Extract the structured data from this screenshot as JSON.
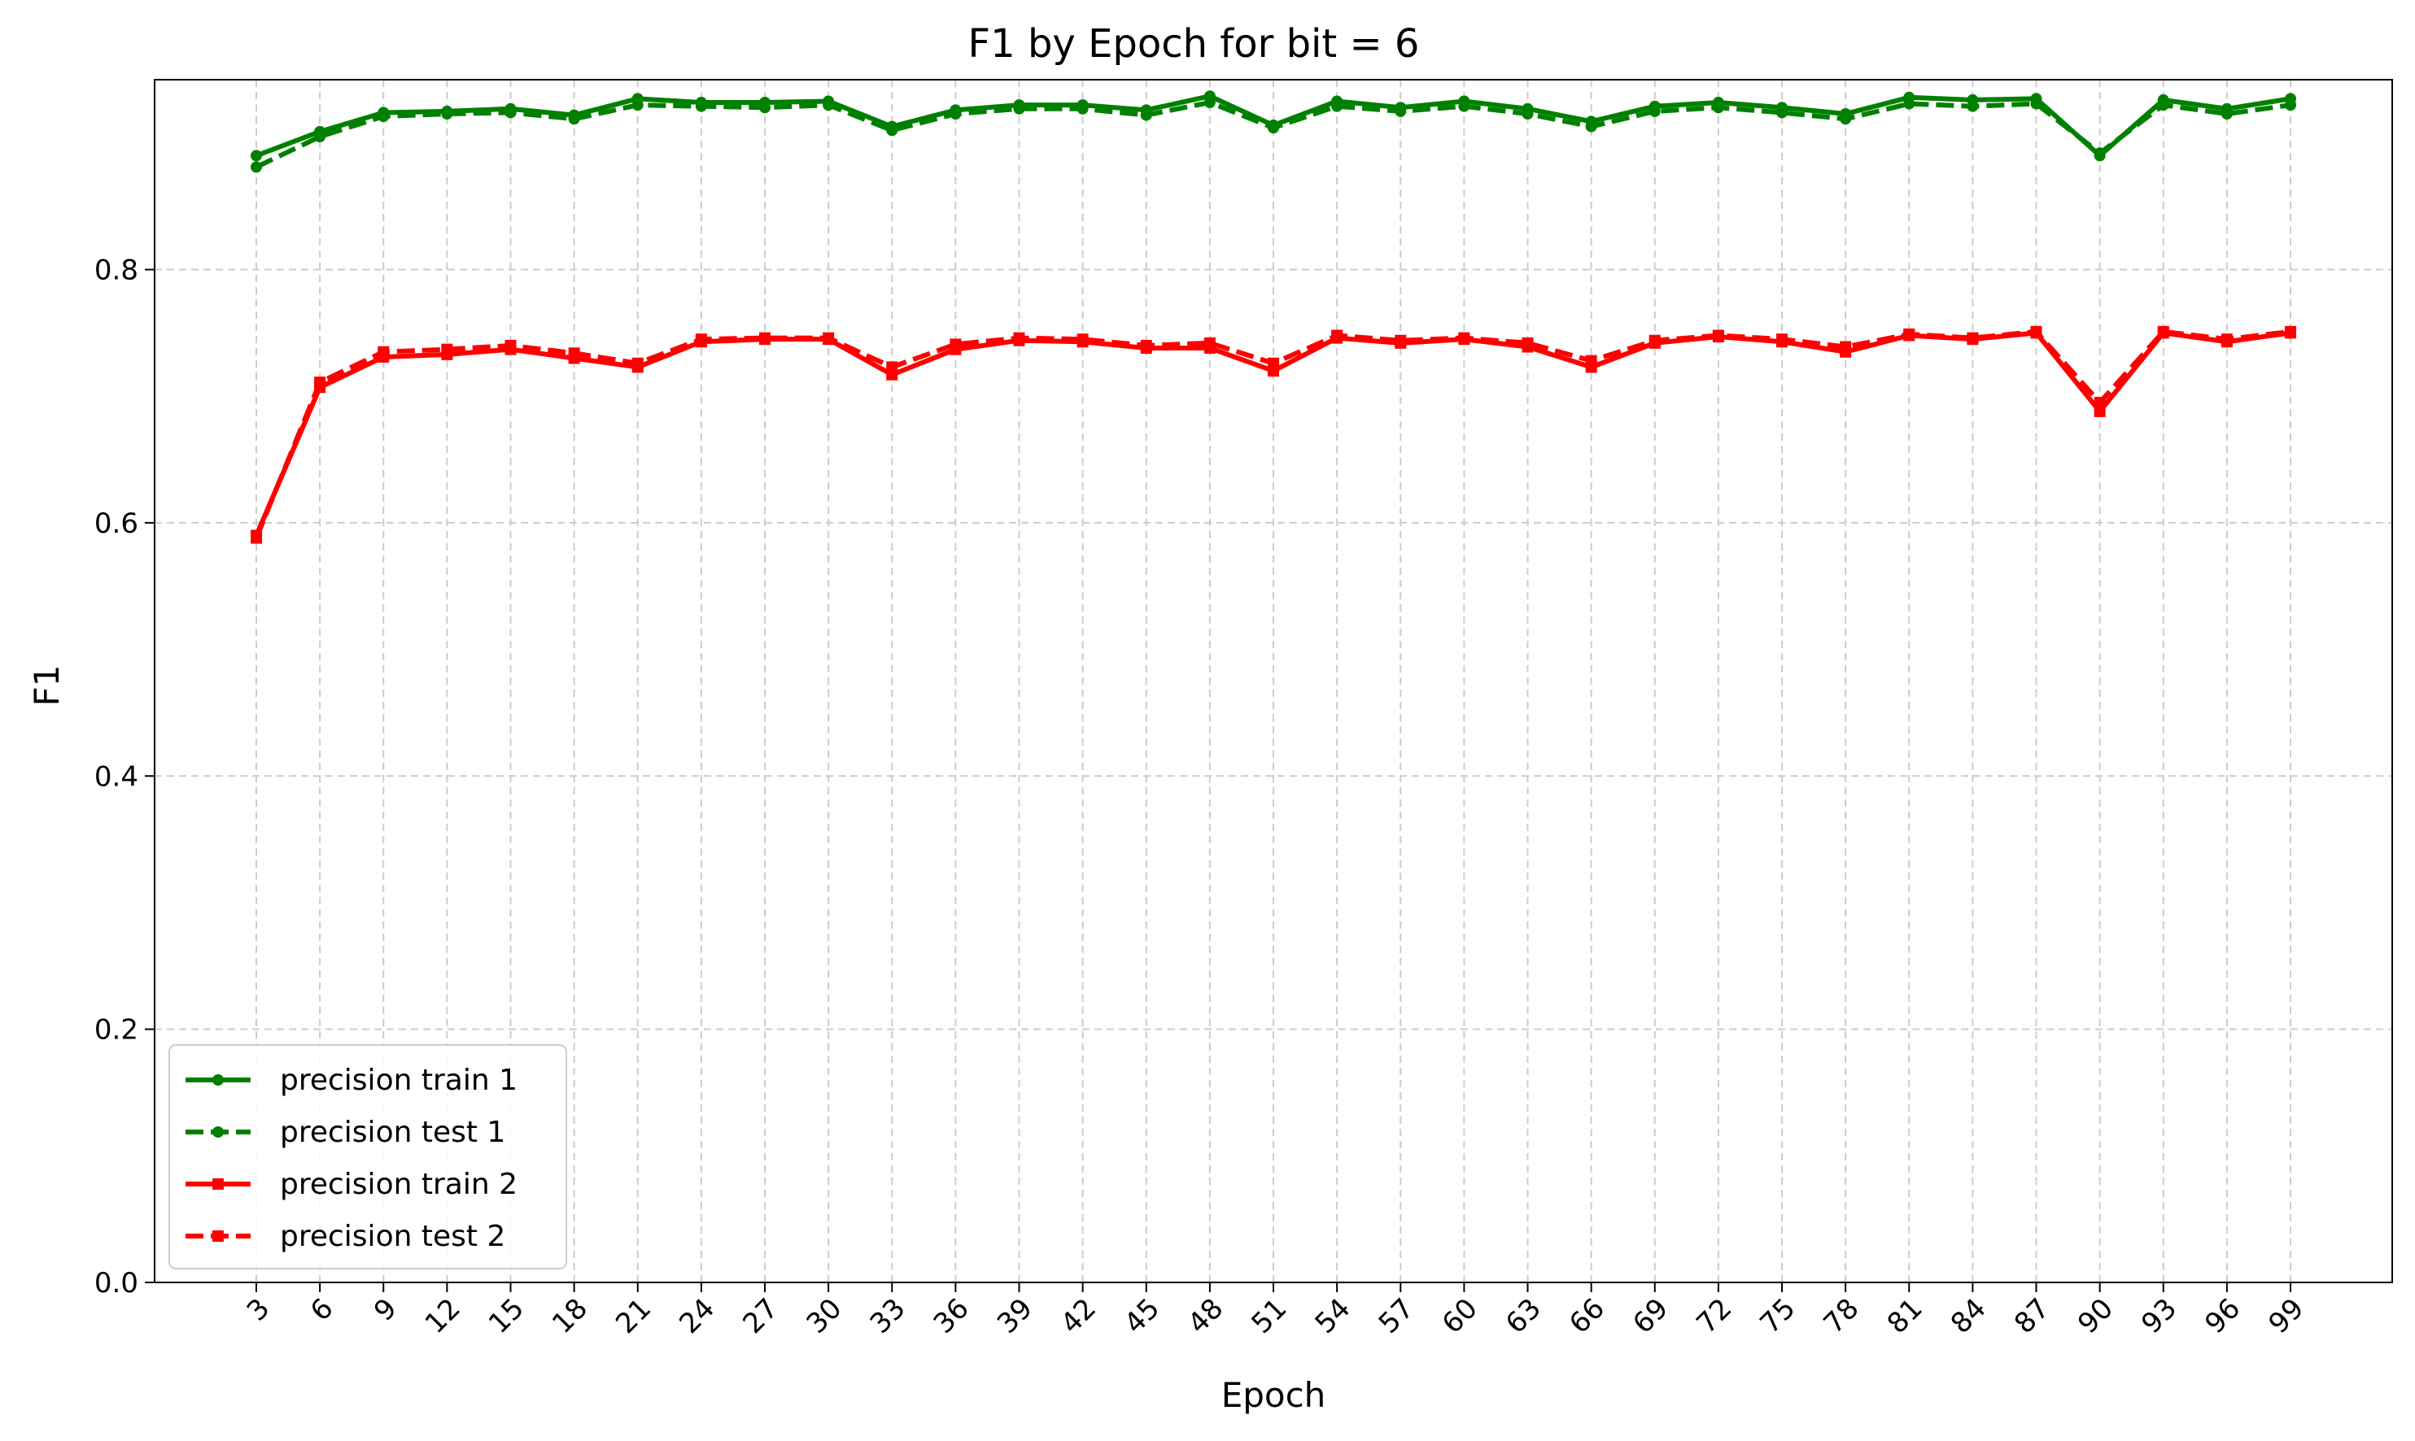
{
  "chart_data": {
    "type": "line",
    "title": "F1 by Epoch for bit = 6",
    "xlabel": "Epoch",
    "ylabel": "F1",
    "x": [
      3,
      6,
      9,
      12,
      15,
      18,
      21,
      24,
      27,
      30,
      33,
      36,
      39,
      42,
      45,
      48,
      51,
      54,
      57,
      60,
      63,
      66,
      69,
      72,
      75,
      78,
      81,
      84,
      87,
      90,
      93,
      96,
      99
    ],
    "x_tick_labels": [
      "3",
      "6",
      "9",
      "12",
      "15",
      "18",
      "21",
      "24",
      "27",
      "30",
      "33",
      "36",
      "39",
      "42",
      "45",
      "48",
      "51",
      "54",
      "57",
      "60",
      "63",
      "66",
      "69",
      "72",
      "75",
      "78",
      "81",
      "84",
      "87",
      "90",
      "93",
      "96",
      "99"
    ],
    "xlim": [
      -1.8,
      103.8
    ],
    "ylim": [
      0.0,
      0.95
    ],
    "y_ticks": [
      0.0,
      0.2,
      0.4,
      0.6,
      0.8
    ],
    "y_tick_labels": [
      "0.0",
      "0.2",
      "0.4",
      "0.6",
      "0.8"
    ],
    "grid": true,
    "legend_position": "lower-left",
    "series": [
      {
        "name": "precision train 1",
        "color": "#008000",
        "linestyle": "solid",
        "marker": "circle",
        "values": [
          0.89,
          0.909,
          0.924,
          0.925,
          0.927,
          0.922,
          0.935,
          0.932,
          0.932,
          0.933,
          0.913,
          0.926,
          0.93,
          0.93,
          0.926,
          0.937,
          0.914,
          0.933,
          0.928,
          0.933,
          0.927,
          0.917,
          0.929,
          0.932,
          0.928,
          0.923,
          0.936,
          0.934,
          0.935,
          0.89,
          0.934,
          0.927,
          0.935
        ]
      },
      {
        "name": "precision test 1",
        "color": "#008000",
        "linestyle": "dashed",
        "marker": "circle",
        "values": [
          0.881,
          0.905,
          0.921,
          0.923,
          0.924,
          0.919,
          0.93,
          0.929,
          0.928,
          0.93,
          0.91,
          0.923,
          0.927,
          0.927,
          0.922,
          0.932,
          0.912,
          0.929,
          0.925,
          0.929,
          0.923,
          0.913,
          0.925,
          0.928,
          0.924,
          0.919,
          0.931,
          0.929,
          0.931,
          0.892,
          0.93,
          0.923,
          0.93
        ]
      },
      {
        "name": "precision train 2",
        "color": "#ff0000",
        "linestyle": "solid",
        "marker": "square",
        "values": [
          0.59,
          0.707,
          0.731,
          0.733,
          0.737,
          0.73,
          0.723,
          0.743,
          0.745,
          0.745,
          0.717,
          0.737,
          0.744,
          0.743,
          0.738,
          0.738,
          0.72,
          0.746,
          0.742,
          0.745,
          0.739,
          0.723,
          0.742,
          0.747,
          0.743,
          0.735,
          0.748,
          0.745,
          0.75,
          0.688,
          0.75,
          0.743,
          0.75
        ]
      },
      {
        "name": "precision test 2",
        "color": "#ff0000",
        "linestyle": "dashed",
        "marker": "square",
        "values": [
          0.588,
          0.711,
          0.735,
          0.737,
          0.74,
          0.734,
          0.726,
          0.745,
          0.746,
          0.746,
          0.723,
          0.741,
          0.746,
          0.745,
          0.74,
          0.742,
          0.726,
          0.748,
          0.744,
          0.746,
          0.742,
          0.728,
          0.744,
          0.748,
          0.745,
          0.739,
          0.749,
          0.746,
          0.751,
          0.695,
          0.751,
          0.745,
          0.751
        ]
      }
    ]
  }
}
